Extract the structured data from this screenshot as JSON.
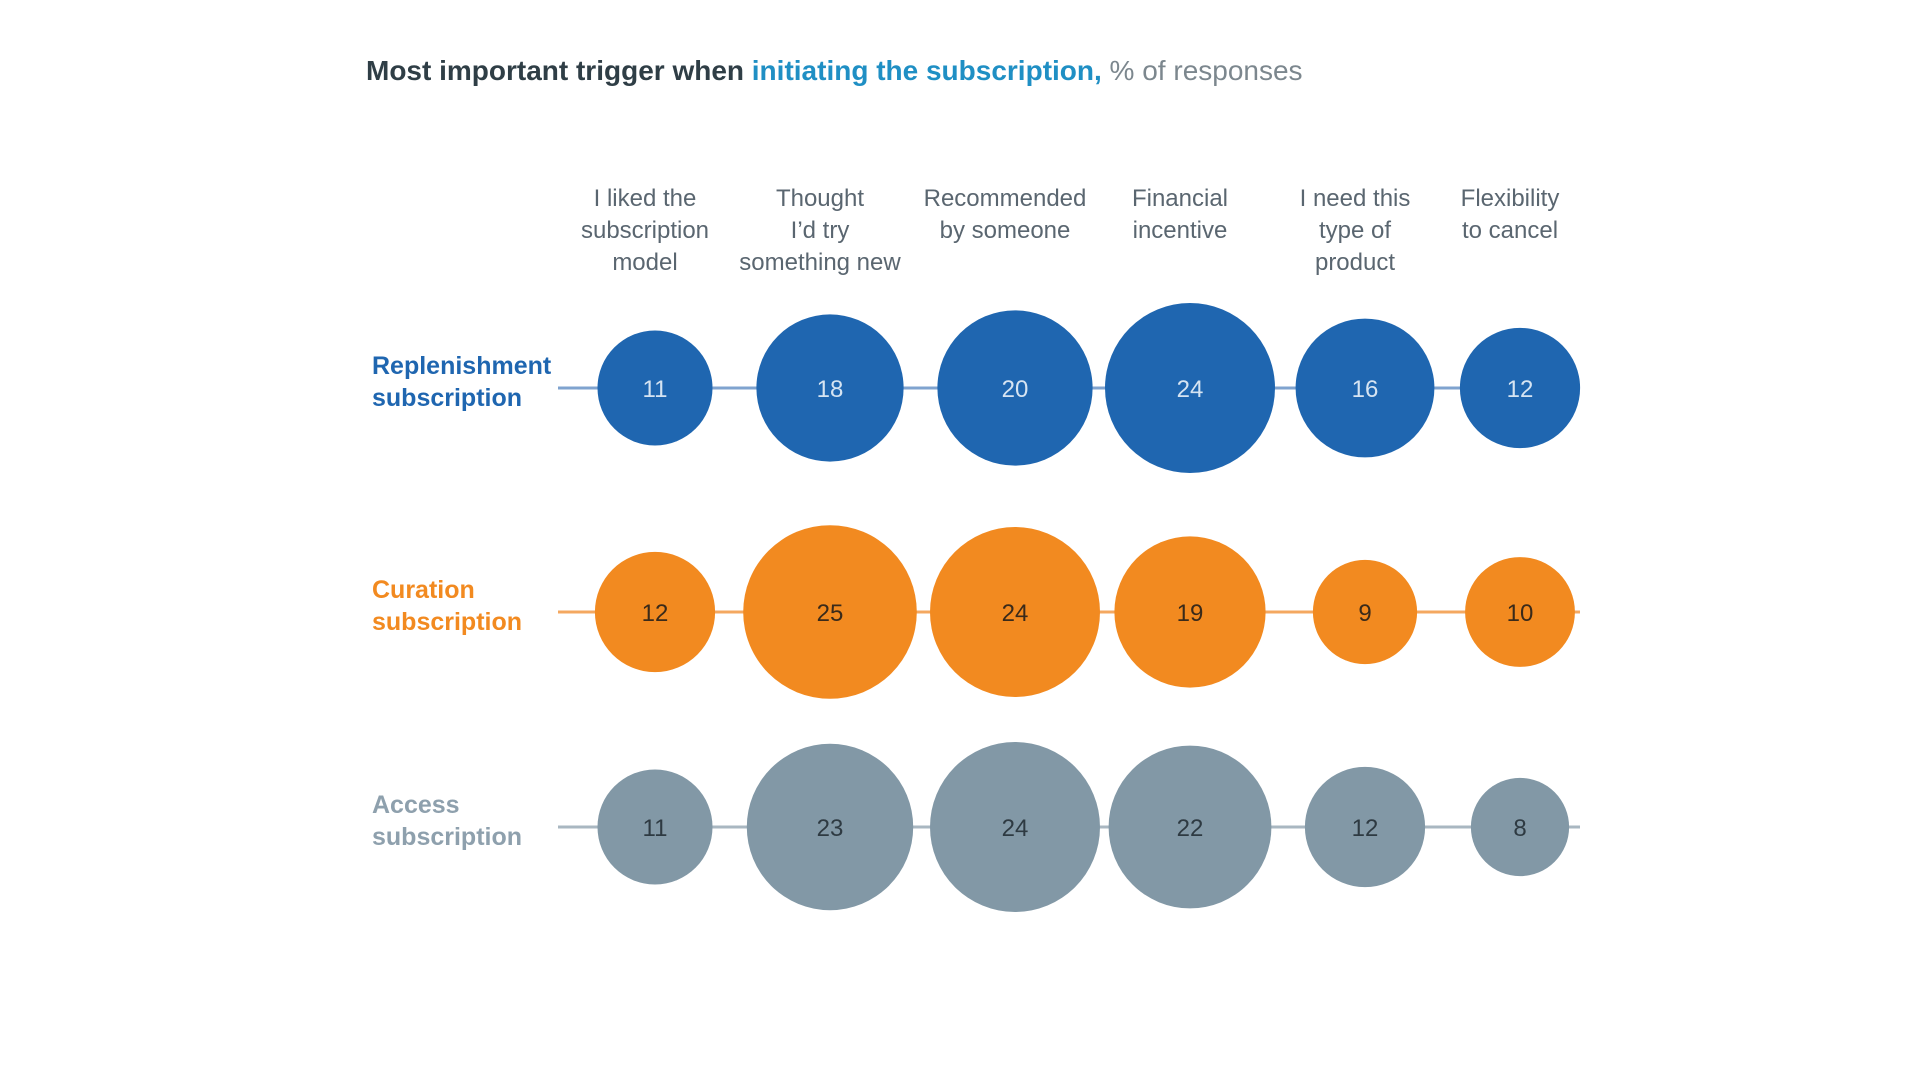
{
  "chart_data": {
    "type": "bubble",
    "title_parts": [
      "Most important trigger when ",
      "initiating the subscription,",
      " % of responses"
    ],
    "categories": [
      [
        "I liked the",
        "subscription",
        "model"
      ],
      [
        "Thought",
        "I’d try",
        "something new"
      ],
      [
        "Recommended",
        "by someone"
      ],
      [
        "Financial",
        "incentive"
      ],
      [
        "I need this",
        "type of",
        "product"
      ],
      [
        "Flexibility",
        "to cancel"
      ]
    ],
    "series": [
      {
        "name": [
          "Replenishment",
          "subscription"
        ],
        "values": [
          11,
          18,
          20,
          24,
          16,
          12
        ],
        "color": "#1f66b0",
        "text_color": "#d6e4f2"
      },
      {
        "name": [
          "Curation",
          "subscription"
        ],
        "values": [
          12,
          25,
          24,
          19,
          9,
          10
        ],
        "color": "#f28a20",
        "text_color": "#3a2a1a"
      },
      {
        "name": [
          "Access",
          "subscription"
        ],
        "values": [
          11,
          23,
          24,
          22,
          12,
          8
        ],
        "color": "#8298a6",
        "text_color": "#2e3a42"
      }
    ],
    "line_colors": [
      "#7fa3cf",
      "#f4a860",
      "#a9b7c1"
    ],
    "label_colors": [
      "#1f66b0",
      "#f28a20",
      "#8ea0ad"
    ]
  }
}
